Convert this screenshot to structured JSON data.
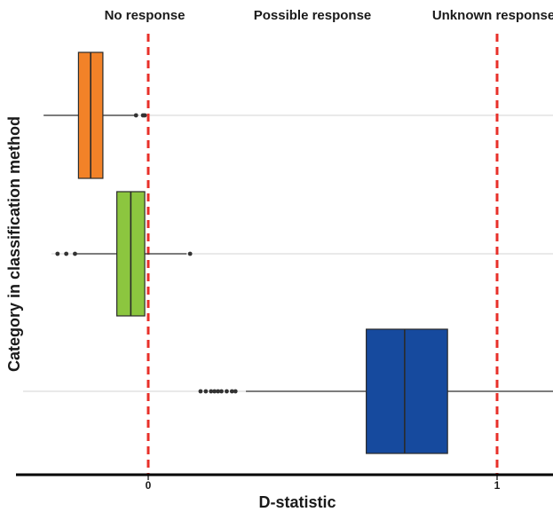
{
  "chart_data": {
    "type": "boxplot",
    "orientation": "horizontal",
    "xlabel": "D-statistic",
    "ylabel": "Category in classification method",
    "x_ticks": [
      {
        "value": 0,
        "label": "0"
      },
      {
        "value": 1,
        "label": "1"
      }
    ],
    "reference_lines": [
      {
        "value": 0,
        "style": "dashed",
        "color": "#e8302a"
      },
      {
        "value": 1,
        "style": "dashed",
        "color": "#e8302a"
      }
    ],
    "annotations": [
      {
        "text": "No response"
      },
      {
        "text": "Possible response"
      },
      {
        "text": "Unknown response"
      }
    ],
    "boxes": [
      {
        "color": "#f28228",
        "whisker_low": -0.3,
        "q1": -0.2,
        "median": -0.165,
        "q3": -0.13,
        "whisker_high": -0.04,
        "outliers": [
          -0.035,
          -0.015,
          -0.01
        ]
      },
      {
        "color": "#8cc63f",
        "whisker_low": -0.21,
        "q1": -0.09,
        "median": -0.05,
        "q3": -0.01,
        "whisker_high": 0.11,
        "outliers": [
          -0.26,
          -0.235,
          -0.21,
          0.12
        ]
      },
      {
        "color": "#164a9e",
        "whisker_low": 0.28,
        "q1": 0.625,
        "median": 0.735,
        "q3": 0.858,
        "whisker_high": 1.17,
        "outliers": [
          0.15,
          0.165,
          0.18,
          0.19,
          0.2,
          0.21,
          0.225,
          0.24,
          0.25
        ]
      }
    ],
    "grid": "horizontal-at-categories"
  }
}
